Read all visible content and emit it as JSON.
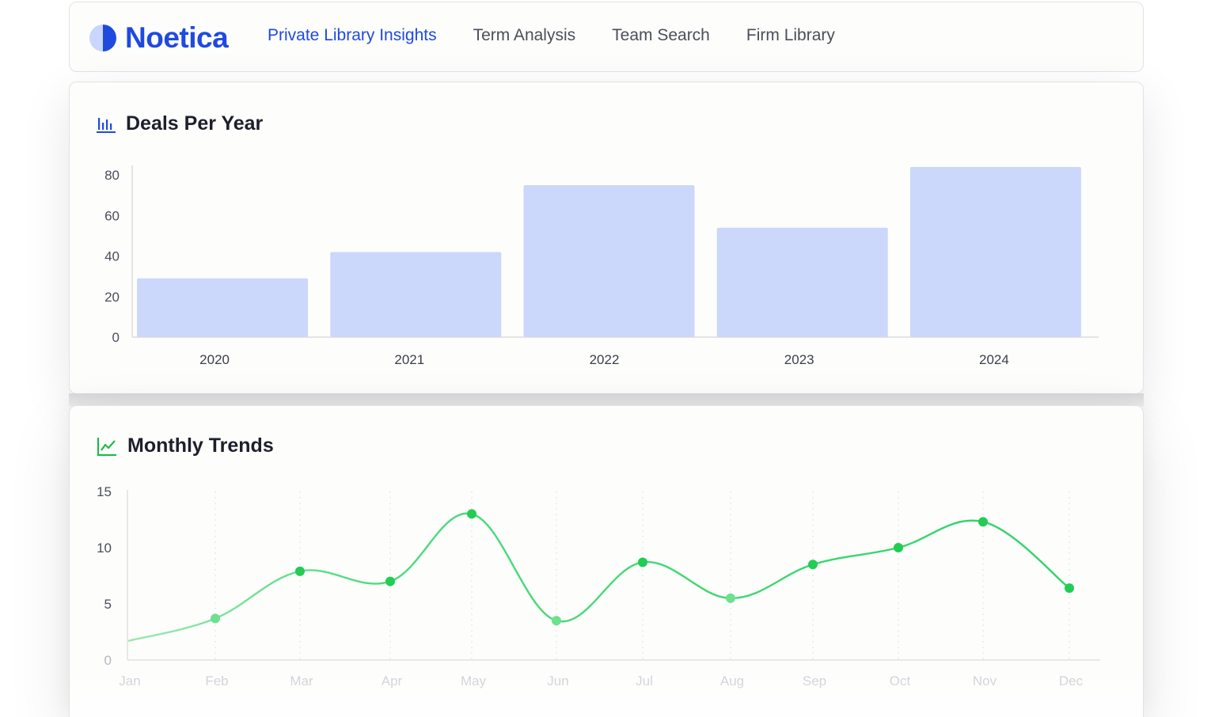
{
  "nav": {
    "logo_text": "Noetica",
    "links": [
      {
        "label": "Private Library Insights",
        "active": true
      },
      {
        "label": "Term Analysis",
        "active": false
      },
      {
        "label": "Team Search",
        "active": false
      },
      {
        "label": "Firm Library",
        "active": false
      }
    ]
  },
  "colors": {
    "brand": "#1f4ae0",
    "bar_fill": "#cbd8fb",
    "line_green": "#2fd467",
    "point_green": "#22cc55"
  },
  "icons": {
    "bar_chart": "bar-chart-icon",
    "line_chart": "line-chart-icon",
    "logo": "logo-icon"
  },
  "chart_data": [
    {
      "type": "bar",
      "title": "Deals Per Year",
      "categories": [
        "2020",
        "2021",
        "2022",
        "2023",
        "2024"
      ],
      "values": [
        29,
        42,
        75,
        54,
        84
      ],
      "ylim": [
        0,
        84
      ],
      "yticks": [
        0,
        20,
        40,
        60,
        80
      ],
      "xlabel": "",
      "ylabel": "",
      "grid": false
    },
    {
      "type": "line",
      "title": "Monthly Trends",
      "categories": [
        "Jan",
        "Feb",
        "Mar",
        "Apr",
        "May",
        "Jun",
        "Jul",
        "Aug",
        "Sep",
        "Oct",
        "Nov",
        "Dec"
      ],
      "values": [
        1.7,
        3.7,
        7.9,
        7.0,
        13.0,
        3.5,
        8.7,
        5.5,
        8.5,
        10.0,
        12.3,
        6.4
      ],
      "ylim": [
        0,
        15
      ],
      "yticks": [
        0,
        5,
        10,
        15
      ],
      "xlabel": "",
      "ylabel": "",
      "grid": "vertical-dotted",
      "smooth": true
    }
  ]
}
